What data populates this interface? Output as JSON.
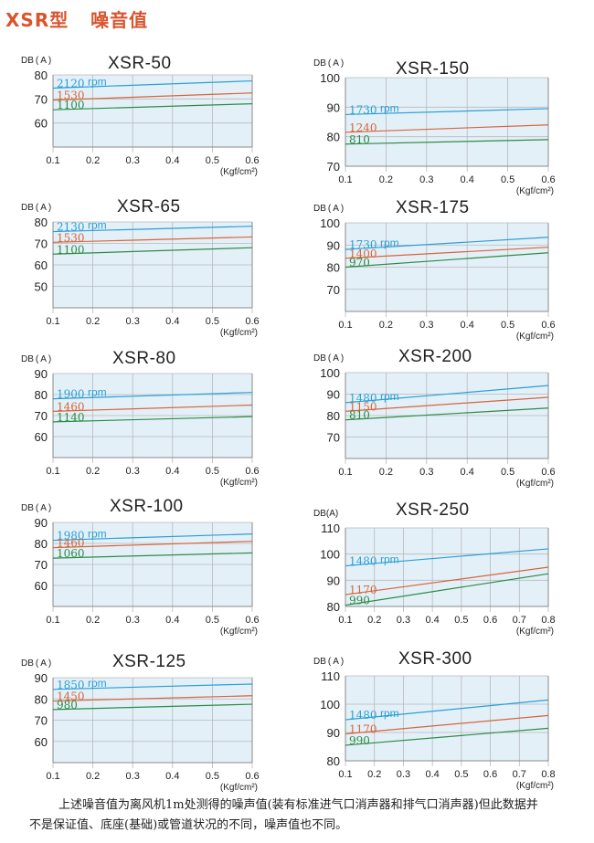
{
  "page": {
    "title": "XSR型   噪音值",
    "footnote": [
      "上述噪音值为离风机1m处测得的噪声值(装有标准进气口消声器和排气口消声器)但此数据并",
      "不是保证值、底座(基础)或管道状况的不同，噪声值也不同。"
    ]
  },
  "colors": {
    "panel_bg": "#e3f0f8",
    "grid": "#b9b9b9",
    "border": "#8a8a8a",
    "series": [
      "#2a9fd6",
      "#d9643a",
      "#2e8b45"
    ]
  },
  "chart_data": [
    {
      "type": "line",
      "title": "XSR-50",
      "ylabel": "DB ( A )",
      "xlabel_unit": "(Kgf/cm²)",
      "x_ticks": [
        "0.1",
        "0.2",
        "0.3",
        "0.4",
        "0.5",
        "0.6"
      ],
      "y_ticks": [
        "80",
        "70",
        "60"
      ],
      "xlim": [
        0.1,
        0.6
      ],
      "ylim": [
        50,
        80
      ],
      "rpm_label": "rpm",
      "series": [
        {
          "name": "2120",
          "x": [
            0.1,
            0.6
          ],
          "y": [
            74.5,
            77.5
          ]
        },
        {
          "name": "1530",
          "x": [
            0.1,
            0.6
          ],
          "y": [
            69.5,
            72.5
          ]
        },
        {
          "name": "1100",
          "x": [
            0.1,
            0.6
          ],
          "y": [
            65.5,
            68
          ]
        }
      ]
    },
    {
      "type": "line",
      "title": "XSR-150",
      "ylabel": "DB ( A )",
      "xlabel_unit": "(Kgf/cm²)",
      "x_ticks": [
        "0.1",
        "0.2",
        "0.3",
        "0.4",
        "0.5",
        "0.6"
      ],
      "y_ticks": [
        "100",
        "90",
        "80",
        "70"
      ],
      "xlim": [
        0.1,
        0.6
      ],
      "ylim": [
        70,
        100
      ],
      "rpm_label": "rpm",
      "series": [
        {
          "name": "1730",
          "x": [
            0.1,
            0.6
          ],
          "y": [
            87.5,
            89.5
          ]
        },
        {
          "name": "1240",
          "x": [
            0.1,
            0.6
          ],
          "y": [
            81.5,
            84
          ]
        },
        {
          "name": "810",
          "x": [
            0.1,
            0.6
          ],
          "y": [
            77.5,
            79
          ]
        }
      ]
    },
    {
      "type": "line",
      "title": "XSR-65",
      "ylabel": "DB ( A )",
      "xlabel_unit": "(Kgf/cm²)",
      "x_ticks": [
        "0.1",
        "0.2",
        "0.3",
        "0.4",
        "0.5",
        "0.6"
      ],
      "y_ticks": [
        "80",
        "70",
        "60",
        "50"
      ],
      "xlim": [
        0.1,
        0.6
      ],
      "ylim": [
        40,
        80
      ],
      "rpm_label": "rpm",
      "series": [
        {
          "name": "2130",
          "x": [
            0.1,
            0.6
          ],
          "y": [
            75.5,
            78
          ]
        },
        {
          "name": "1530",
          "x": [
            0.1,
            0.6
          ],
          "y": [
            70.5,
            73
          ]
        },
        {
          "name": "1100",
          "x": [
            0.1,
            0.6
          ],
          "y": [
            65,
            68
          ]
        }
      ]
    },
    {
      "type": "line",
      "title": "XSR-175",
      "ylabel": "DB ( A )",
      "xlabel_unit": "(Kgf/cm²)",
      "x_ticks": [
        "0.1",
        "0.2",
        "0.3",
        "0.4",
        "0.5",
        "0.6"
      ],
      "y_ticks": [
        "100",
        "90",
        "80",
        "70"
      ],
      "xlim": [
        0.1,
        0.6
      ],
      "ylim": [
        60,
        100
      ],
      "rpm_label": "rpm",
      "series": [
        {
          "name": "1730",
          "x": [
            0.1,
            0.6
          ],
          "y": [
            88,
            93.5
          ]
        },
        {
          "name": "1400",
          "x": [
            0.1,
            0.6
          ],
          "y": [
            84,
            89
          ]
        },
        {
          "name": "970",
          "x": [
            0.1,
            0.6
          ],
          "y": [
            80,
            86.5
          ]
        }
      ]
    },
    {
      "type": "line",
      "title": "XSR-80",
      "ylabel": "DB ( A )",
      "xlabel_unit": "(Kgf/cm²)",
      "x_ticks": [
        "0.1",
        "0.2",
        "0.3",
        "0.4",
        "0.5",
        "0.6"
      ],
      "y_ticks": [
        "90",
        "80",
        "70",
        "60"
      ],
      "xlim": [
        0.1,
        0.6
      ],
      "ylim": [
        50,
        90
      ],
      "rpm_label": "rpm",
      "series": [
        {
          "name": "1900",
          "x": [
            0.1,
            0.6
          ],
          "y": [
            78,
            81
          ]
        },
        {
          "name": "1460",
          "x": [
            0.1,
            0.6
          ],
          "y": [
            72,
            75
          ]
        },
        {
          "name": "1140",
          "x": [
            0.1,
            0.6
          ],
          "y": [
            67,
            69.5
          ]
        }
      ]
    },
    {
      "type": "line",
      "title": "XSR-200",
      "ylabel": "DB ( A )",
      "xlabel_unit": "(Kgf/cm²)",
      "x_ticks": [
        "0.1",
        "0.2",
        "0.3",
        "0.4",
        "0.5",
        "0.6"
      ],
      "y_ticks": [
        "100",
        "90",
        "80",
        "70"
      ],
      "xlim": [
        0.1,
        0.6
      ],
      "ylim": [
        60,
        100
      ],
      "rpm_label": "rpm",
      "series": [
        {
          "name": "1480",
          "x": [
            0.1,
            0.6
          ],
          "y": [
            86,
            94
          ]
        },
        {
          "name": "1150",
          "x": [
            0.1,
            0.6
          ],
          "y": [
            82,
            88.5
          ]
        },
        {
          "name": "810",
          "x": [
            0.1,
            0.6
          ],
          "y": [
            78,
            83.5
          ]
        }
      ]
    },
    {
      "type": "line",
      "title": "XSR-100",
      "ylabel": "DB ( A )",
      "xlabel_unit": "(Kgf/cm²)",
      "x_ticks": [
        "0.1",
        "0.2",
        "0.3",
        "0.4",
        "0.5",
        "0.6"
      ],
      "y_ticks": [
        "90",
        "80",
        "70",
        "60"
      ],
      "xlim": [
        0.1,
        0.6
      ],
      "ylim": [
        50,
        90
      ],
      "rpm_label": "rpm",
      "series": [
        {
          "name": "1980",
          "x": [
            0.1,
            0.6
          ],
          "y": [
            81.5,
            84.5
          ]
        },
        {
          "name": "1460",
          "x": [
            0.1,
            0.6
          ],
          "y": [
            78,
            81
          ]
        },
        {
          "name": "1060",
          "x": [
            0.1,
            0.6
          ],
          "y": [
            73,
            75.5
          ]
        }
      ]
    },
    {
      "type": "line",
      "title": "XSR-250",
      "ylabel": "DB(A)",
      "xlabel_unit": "(Kgf/cm²)",
      "x_ticks": [
        "0.1",
        "0.2",
        "0.3",
        "0.4",
        "0.5",
        "0.6",
        "0.7",
        "0.8"
      ],
      "y_ticks": [
        "110",
        "100",
        "90",
        "80"
      ],
      "xlim": [
        0.1,
        0.8
      ],
      "ylim": [
        80,
        110
      ],
      "rpm_label": "rpm",
      "series": [
        {
          "name": "1480",
          "x": [
            0.1,
            0.8
          ],
          "y": [
            95.5,
            102
          ]
        },
        {
          "name": "1170",
          "x": [
            0.1,
            0.8
          ],
          "y": [
            84.5,
            95
          ]
        },
        {
          "name": "990",
          "x": [
            0.1,
            0.8
          ],
          "y": [
            80.5,
            92.5
          ]
        }
      ]
    },
    {
      "type": "line",
      "title": "XSR-125",
      "ylabel": "DB ( A )",
      "xlabel_unit": "(Kgf/cm²)",
      "x_ticks": [
        "0.1",
        "0.2",
        "0.3",
        "0.4",
        "0.5",
        "0.6"
      ],
      "y_ticks": [
        "90",
        "80",
        "70",
        "60"
      ],
      "xlim": [
        0.1,
        0.6
      ],
      "ylim": [
        50,
        90
      ],
      "rpm_label": "rpm",
      "series": [
        {
          "name": "1850",
          "x": [
            0.1,
            0.6
          ],
          "y": [
            84.5,
            87
          ]
        },
        {
          "name": "1450",
          "x": [
            0.1,
            0.6
          ],
          "y": [
            79,
            81.5
          ]
        },
        {
          "name": "980",
          "x": [
            0.1,
            0.6
          ],
          "y": [
            75,
            77.5
          ]
        }
      ]
    },
    {
      "type": "line",
      "title": "XSR-300",
      "ylabel": "DB ( A )",
      "xlabel_unit": "(Kgf/cm²)",
      "x_ticks": [
        "0.1",
        "0.2",
        "0.3",
        "0.4",
        "0.5",
        "0.6",
        "0.7",
        "0.8"
      ],
      "y_ticks": [
        "110",
        "100",
        "90",
        "80"
      ],
      "xlim": [
        0.1,
        0.8
      ],
      "ylim": [
        80,
        110
      ],
      "rpm_label": "rpm",
      "series": [
        {
          "name": "1480",
          "x": [
            0.1,
            0.8
          ],
          "y": [
            94.5,
            101.5
          ]
        },
        {
          "name": "1170",
          "x": [
            0.1,
            0.8
          ],
          "y": [
            89.5,
            96
          ]
        },
        {
          "name": "990",
          "x": [
            0.1,
            0.8
          ],
          "y": [
            85.5,
            91.5
          ]
        }
      ]
    }
  ]
}
